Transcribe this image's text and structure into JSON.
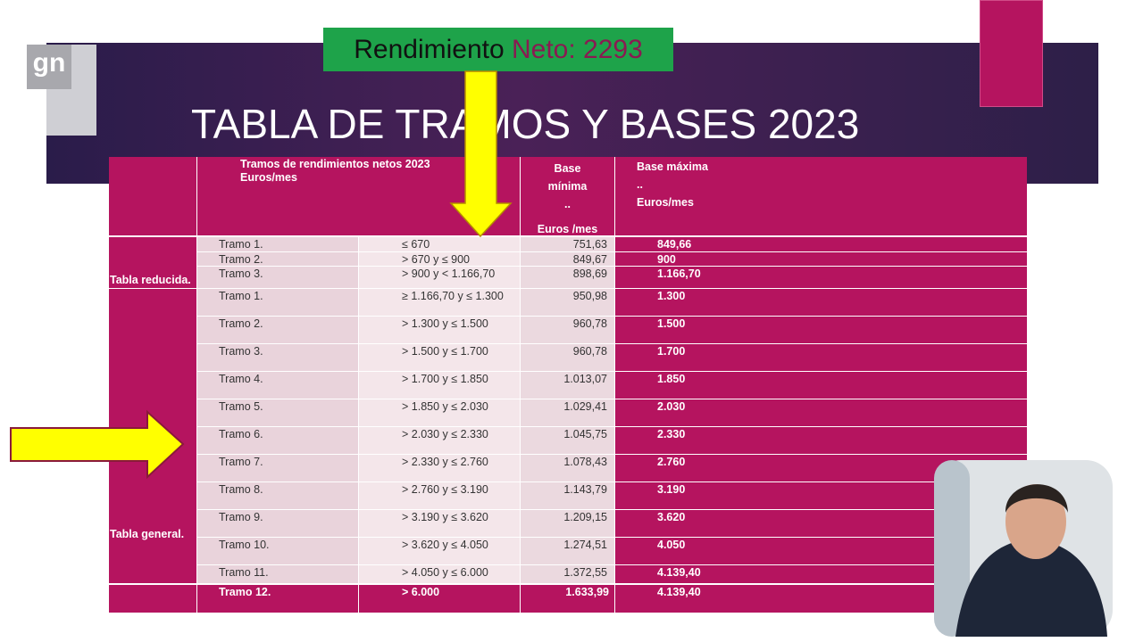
{
  "banner": {
    "label": "Rendimiento",
    "value": "Neto: 2293"
  },
  "logo": "gn",
  "title": "TABLA DE TRAMOS Y BASES 2023",
  "table": {
    "header": {
      "tramos": [
        "Tramos de rendimientos netos 2023",
        "Euros/mes"
      ],
      "base_minima": [
        "Base",
        "mínima",
        "..",
        "Euros /mes"
      ],
      "base_maxima": [
        "Base máxima",
        "..",
        "Euros/mes"
      ]
    },
    "groups": [
      {
        "label": "Tabla reducida.",
        "rows": [
          [
            "Tramo 1.",
            "≤ 670",
            "751,63",
            "849,66"
          ],
          [
            "Tramo 2.",
            "> 670 y ≤ 900",
            "849,67",
            "900"
          ],
          [
            "Tramo 3.",
            "> 900 y < 1.166,70",
            "898,69",
            "1.166,70"
          ]
        ]
      },
      {
        "label": "Tabla general.",
        "rows": [
          [
            "Tramo 1.",
            "≥ 1.166,70 y ≤ 1.300",
            "950,98",
            "1.300"
          ],
          [
            "Tramo 2.",
            "> 1.300 y ≤ 1.500",
            "960,78",
            "1.500"
          ],
          [
            "Tramo 3.",
            "> 1.500 y ≤ 1.700",
            "960,78",
            "1.700"
          ],
          [
            "Tramo 4.",
            "> 1.700 y ≤ 1.850",
            "1.013,07",
            "1.850"
          ],
          [
            "Tramo 5.",
            "> 1.850 y ≤ 2.030",
            "1.029,41",
            "2.030"
          ],
          [
            "Tramo 6.",
            "> 2.030 y ≤ 2.330",
            "1.045,75",
            "2.330"
          ],
          [
            "Tramo 7.",
            "> 2.330 y ≤ 2.760",
            "1.078,43",
            "2.760"
          ],
          [
            "Tramo 8.",
            "> 2.760 y ≤ 3.190",
            "1.143,79",
            "3.190"
          ],
          [
            "Tramo 9.",
            "> 3.190 y ≤ 3.620",
            "1.209,15",
            "3.620"
          ],
          [
            "Tramo 10.",
            "> 3.620 y ≤  4.050",
            "1.274,51",
            "4.050"
          ],
          [
            "Tramo 11.",
            "> 4.050 y ≤ 6.000",
            "1.372,55",
            "4.139,40"
          ]
        ]
      }
    ],
    "final_row": [
      "Tramo 12.",
      "> 6.000",
      "1.633,99",
      "4.139,40"
    ]
  }
}
